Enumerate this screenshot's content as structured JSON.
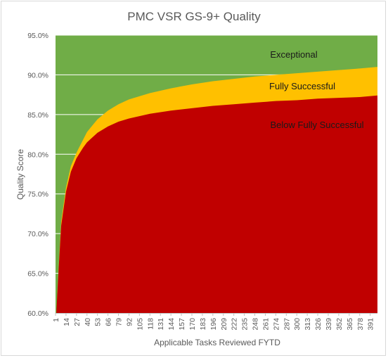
{
  "chart_data": {
    "type": "area",
    "title": "PMC VSR GS-9+ Quality",
    "xlabel": "Applicable Tasks Reviewed FYTD",
    "ylabel": "Quality Score",
    "ylim": [
      60,
      95
    ],
    "xlim": [
      1,
      400
    ],
    "y_ticks": [
      "60.0%",
      "65.0%",
      "70.0%",
      "75.0%",
      "80.0%",
      "85.0%",
      "90.0%",
      "95.0%"
    ],
    "y_tick_values": [
      60,
      65,
      70,
      75,
      80,
      85,
      90,
      95
    ],
    "x_ticks": [
      "1",
      "14",
      "27",
      "40",
      "53",
      "66",
      "79",
      "92",
      "105",
      "118",
      "131",
      "144",
      "157",
      "170",
      "183",
      "196",
      "209",
      "222",
      "235",
      "248",
      "261",
      "274",
      "287",
      "300",
      "313",
      "326",
      "339",
      "352",
      "365",
      "378",
      "391"
    ],
    "grid": "horizontal",
    "bands": [
      {
        "name": "Exceptional",
        "color": "#70ad47"
      },
      {
        "name": "Fully Successful",
        "color": "#ffc000"
      },
      {
        "name": "Below Fully Successful",
        "color": "#c00000"
      }
    ],
    "series": [
      {
        "name": "Fully Successful",
        "x": [
          1,
          2,
          3,
          5,
          8,
          14,
          20,
          27,
          35,
          40,
          53,
          66,
          79,
          92,
          118,
          144,
          170,
          196,
          222,
          248,
          274,
          300,
          326,
          352,
          378,
          400
        ],
        "values": [
          60,
          60,
          62,
          66,
          71.5,
          75.8,
          78.5,
          80.2,
          81.8,
          82.8,
          84.4,
          85.5,
          86.3,
          86.9,
          87.7,
          88.3,
          88.8,
          89.2,
          89.5,
          89.8,
          90.0,
          90.2,
          90.4,
          90.6,
          90.8,
          91.0
        ]
      },
      {
        "name": "Below Fully Successful",
        "x": [
          1,
          2,
          3,
          5,
          8,
          14,
          20,
          27,
          35,
          40,
          53,
          66,
          79,
          92,
          118,
          144,
          170,
          196,
          222,
          248,
          274,
          300,
          326,
          352,
          378,
          400
        ],
        "values": [
          60,
          60,
          62,
          65.8,
          71,
          75.3,
          77.8,
          79.5,
          80.8,
          81.5,
          82.7,
          83.5,
          84.1,
          84.5,
          85.1,
          85.5,
          85.8,
          86.1,
          86.3,
          86.5,
          86.7,
          86.8,
          87.0,
          87.1,
          87.2,
          87.4
        ]
      }
    ]
  }
}
